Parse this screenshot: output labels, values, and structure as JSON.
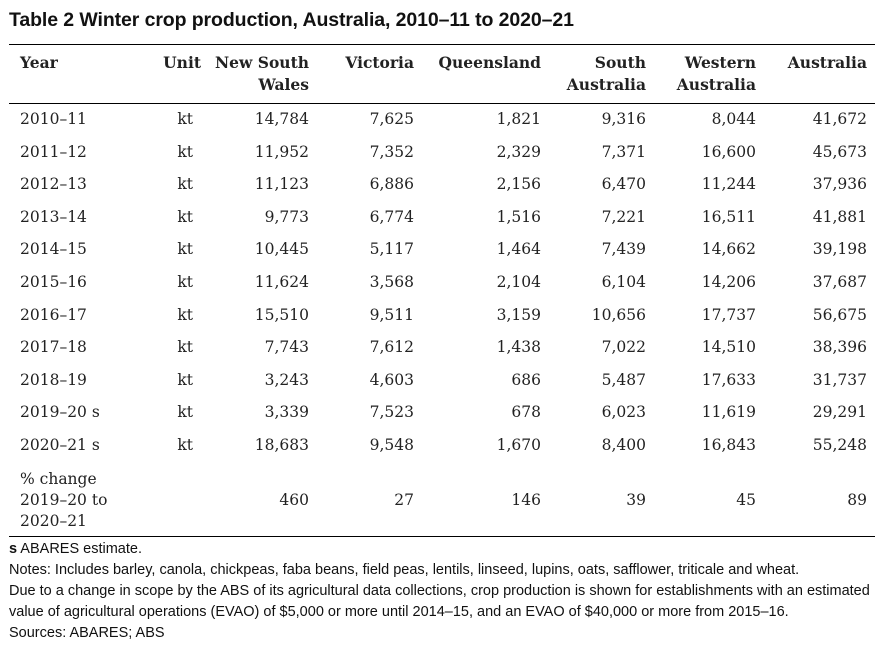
{
  "title": "Table 2 Winter crop production, Australia, 2010–11 to 2020–21",
  "columns": {
    "year": "Year",
    "unit": "Unit",
    "nsw": "New South Wales",
    "vic": "Victoria",
    "qld": "Queensland",
    "sa": "South Australia",
    "wa": "Western Australia",
    "aus": "Australia"
  },
  "rows": [
    {
      "year": "2010–11",
      "unit": "kt",
      "nsw": "14,784",
      "vic": "7,625",
      "qld": "1,821",
      "sa": "9,316",
      "wa": "8,044",
      "aus": "41,672"
    },
    {
      "year": "2011–12",
      "unit": "kt",
      "nsw": "11,952",
      "vic": "7,352",
      "qld": "2,329",
      "sa": "7,371",
      "wa": "16,600",
      "aus": "45,673"
    },
    {
      "year": "2012–13",
      "unit": "kt",
      "nsw": "11,123",
      "vic": "6,886",
      "qld": "2,156",
      "sa": "6,470",
      "wa": "11,244",
      "aus": "37,936"
    },
    {
      "year": "2013–14",
      "unit": "kt",
      "nsw": "9,773",
      "vic": "6,774",
      "qld": "1,516",
      "sa": "7,221",
      "wa": "16,511",
      "aus": "41,881"
    },
    {
      "year": "2014–15",
      "unit": "kt",
      "nsw": "10,445",
      "vic": "5,117",
      "qld": "1,464",
      "sa": "7,439",
      "wa": "14,662",
      "aus": "39,198"
    },
    {
      "year": "2015–16",
      "unit": "kt",
      "nsw": "11,624",
      "vic": "3,568",
      "qld": "2,104",
      "sa": "6,104",
      "wa": "14,206",
      "aus": "37,687"
    },
    {
      "year": "2016–17",
      "unit": "kt",
      "nsw": "15,510",
      "vic": "9,511",
      "qld": "3,159",
      "sa": "10,656",
      "wa": "17,737",
      "aus": "56,675"
    },
    {
      "year": "2017–18",
      "unit": "kt",
      "nsw": "7,743",
      "vic": "7,612",
      "qld": "1,438",
      "sa": "7,022",
      "wa": "14,510",
      "aus": "38,396"
    },
    {
      "year": "2018–19",
      "unit": "kt",
      "nsw": "3,243",
      "vic": "4,603",
      "qld": "686",
      "sa": "5,487",
      "wa": "17,633",
      "aus": "31,737"
    },
    {
      "year": "2019–20 s",
      "unit": "kt",
      "nsw": "3,339",
      "vic": "7,523",
      "qld": "678",
      "sa": "6,023",
      "wa": "11,619",
      "aus": "29,291"
    },
    {
      "year": "2020–21 s",
      "unit": "kt",
      "nsw": "18,683",
      "vic": "9,548",
      "qld": "1,670",
      "sa": "8,400",
      "wa": "16,843",
      "aus": "55,248"
    }
  ],
  "change_row": {
    "label_line1": "% change",
    "label_line2": "2019–20 to",
    "label_line3": "2020–21",
    "nsw": "460",
    "vic": "27",
    "qld": "146",
    "sa": "39",
    "wa": "45",
    "aus": "89"
  },
  "notes": {
    "estimate_marker": "s",
    "estimate_text": " ABARES estimate.",
    "line1": "Notes: Includes barley, canola, chickpeas, faba beans, field peas, lentils, linseed, lupins, oats, safflower, triticale and wheat.",
    "line2": "Due to a change in scope by the ABS of its agricultural data collections, crop production is shown for establishments with an estimated value of agricultural operations (EVAO) of $5,000 or more until 2014–15, and an EVAO of $40,000 or more from 2015–16.",
    "sources": "Sources: ABARES; ABS"
  }
}
